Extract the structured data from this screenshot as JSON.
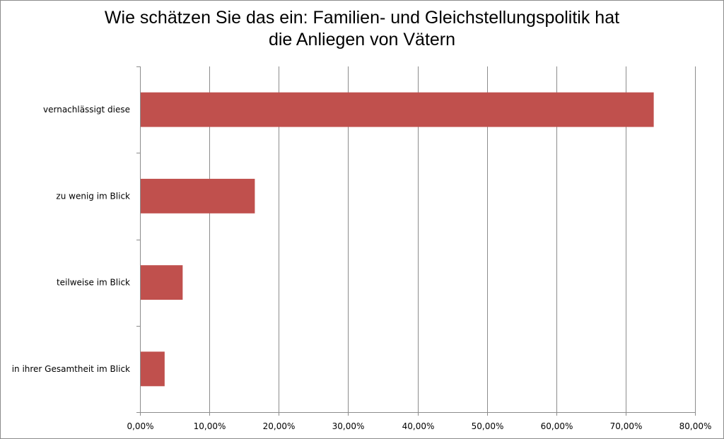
{
  "chart_data": {
    "type": "bar",
    "orientation": "horizontal",
    "title_lines": [
      "Wie schätzen Sie das ein: Familien- und Gleichstellungspolitik hat",
      "die Anliegen von Vätern"
    ],
    "categories": [
      "vernachlässigt diese",
      "zu wenig im Blick",
      "teilweise im Blick",
      "in ihrer Gesamtheit im Blick"
    ],
    "values": [
      0.74,
      0.165,
      0.061,
      0.035
    ],
    "xlim": [
      0,
      0.8
    ],
    "xticks": [
      0,
      0.1,
      0.2,
      0.3,
      0.4,
      0.5,
      0.6,
      0.7,
      0.8
    ],
    "xtick_labels": [
      "0,00%",
      "10,00%",
      "20,00%",
      "30,00%",
      "40,00%",
      "50,00%",
      "60,00%",
      "70,00%",
      "80,00%"
    ],
    "xlabel": "",
    "ylabel": "",
    "grid": "vertical",
    "legend": "none",
    "bar_color": "#c0504d",
    "grid_color": "#8c8c8c"
  }
}
